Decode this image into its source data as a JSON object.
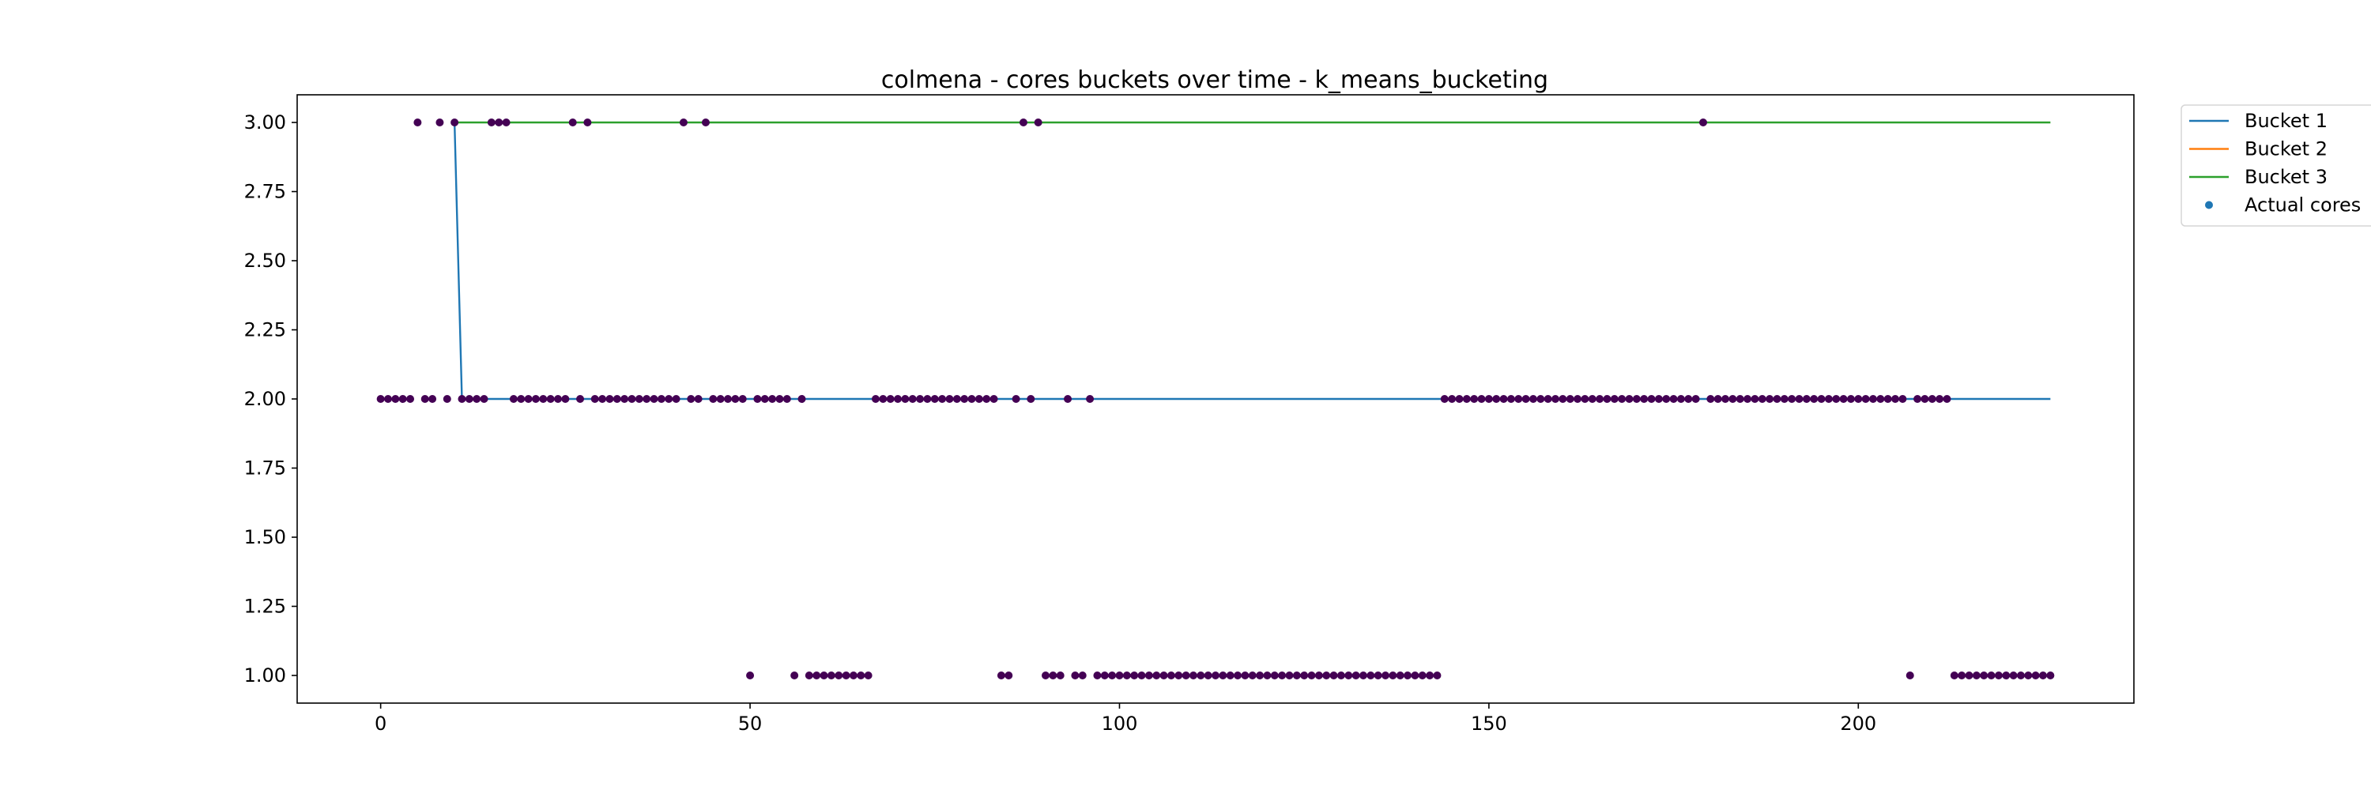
{
  "chart_data": {
    "type": "line",
    "title": "colmena - cores buckets over time - k_means_bucketing",
    "xlabel": "",
    "ylabel": "",
    "xlim": [
      -11.3,
      237.3
    ],
    "ylim": [
      0.9,
      3.1
    ],
    "x_ticks": [
      "0",
      "50",
      "100",
      "150",
      "200"
    ],
    "y_ticks": [
      "1.00",
      "1.25",
      "1.50",
      "1.75",
      "2.00",
      "2.25",
      "2.50",
      "2.75",
      "3.00"
    ],
    "grid": false,
    "legend_position": "outside-top-right",
    "series": [
      {
        "name": "Bucket 1",
        "type": "line",
        "color": "#1f77b4",
        "points": [
          [
            10,
            3
          ],
          [
            11,
            2
          ],
          [
            226,
            2
          ]
        ]
      },
      {
        "name": "Bucket 2",
        "type": "line",
        "color": "#ff7f0e",
        "points": []
      },
      {
        "name": "Bucket 3",
        "type": "line",
        "color": "#2ca02c",
        "points": [
          [
            10,
            3
          ],
          [
            226,
            3
          ]
        ]
      },
      {
        "name": "Actual cores",
        "type": "scatter",
        "color": "#1f77b4",
        "marker_color": "#440154",
        "values_by_level": {
          "3": [
            5,
            8,
            10,
            15,
            16,
            17,
            26,
            28,
            41,
            44,
            87,
            89,
            179
          ],
          "2": [
            0,
            1,
            2,
            3,
            4,
            6,
            7,
            9,
            11,
            12,
            13,
            14,
            18,
            19,
            20,
            21,
            22,
            23,
            24,
            25,
            27,
            29,
            30,
            31,
            32,
            33,
            34,
            35,
            36,
            37,
            38,
            39,
            40,
            42,
            43,
            45,
            46,
            47,
            48,
            49,
            51,
            52,
            53,
            54,
            55,
            57,
            67,
            68,
            69,
            70,
            71,
            72,
            73,
            74,
            75,
            76,
            77,
            78,
            79,
            80,
            81,
            82,
            83,
            86,
            88,
            93,
            96,
            144,
            145,
            146,
            147,
            148,
            149,
            150,
            151,
            152,
            153,
            154,
            155,
            156,
            157,
            158,
            159,
            160,
            161,
            162,
            163,
            164,
            165,
            166,
            167,
            168,
            169,
            170,
            171,
            172,
            173,
            174,
            175,
            176,
            177,
            178,
            180,
            181,
            182,
            183,
            184,
            185,
            186,
            187,
            188,
            189,
            190,
            191,
            192,
            193,
            194,
            195,
            196,
            197,
            198,
            199,
            200,
            201,
            202,
            203,
            204,
            205,
            206,
            208,
            209,
            210,
            211,
            212
          ],
          "1": [
            50,
            56,
            58,
            59,
            60,
            61,
            62,
            63,
            64,
            65,
            66,
            84,
            85,
            90,
            91,
            92,
            94,
            95,
            97,
            98,
            99,
            100,
            101,
            102,
            103,
            104,
            105,
            106,
            107,
            108,
            109,
            110,
            111,
            112,
            113,
            114,
            115,
            116,
            117,
            118,
            119,
            120,
            121,
            122,
            123,
            124,
            125,
            126,
            127,
            128,
            129,
            130,
            131,
            132,
            133,
            134,
            135,
            136,
            137,
            138,
            139,
            140,
            141,
            142,
            143,
            207,
            213,
            214,
            215,
            216,
            217,
            218,
            219,
            220,
            221,
            222,
            223,
            224,
            225,
            226
          ]
        }
      }
    ]
  }
}
